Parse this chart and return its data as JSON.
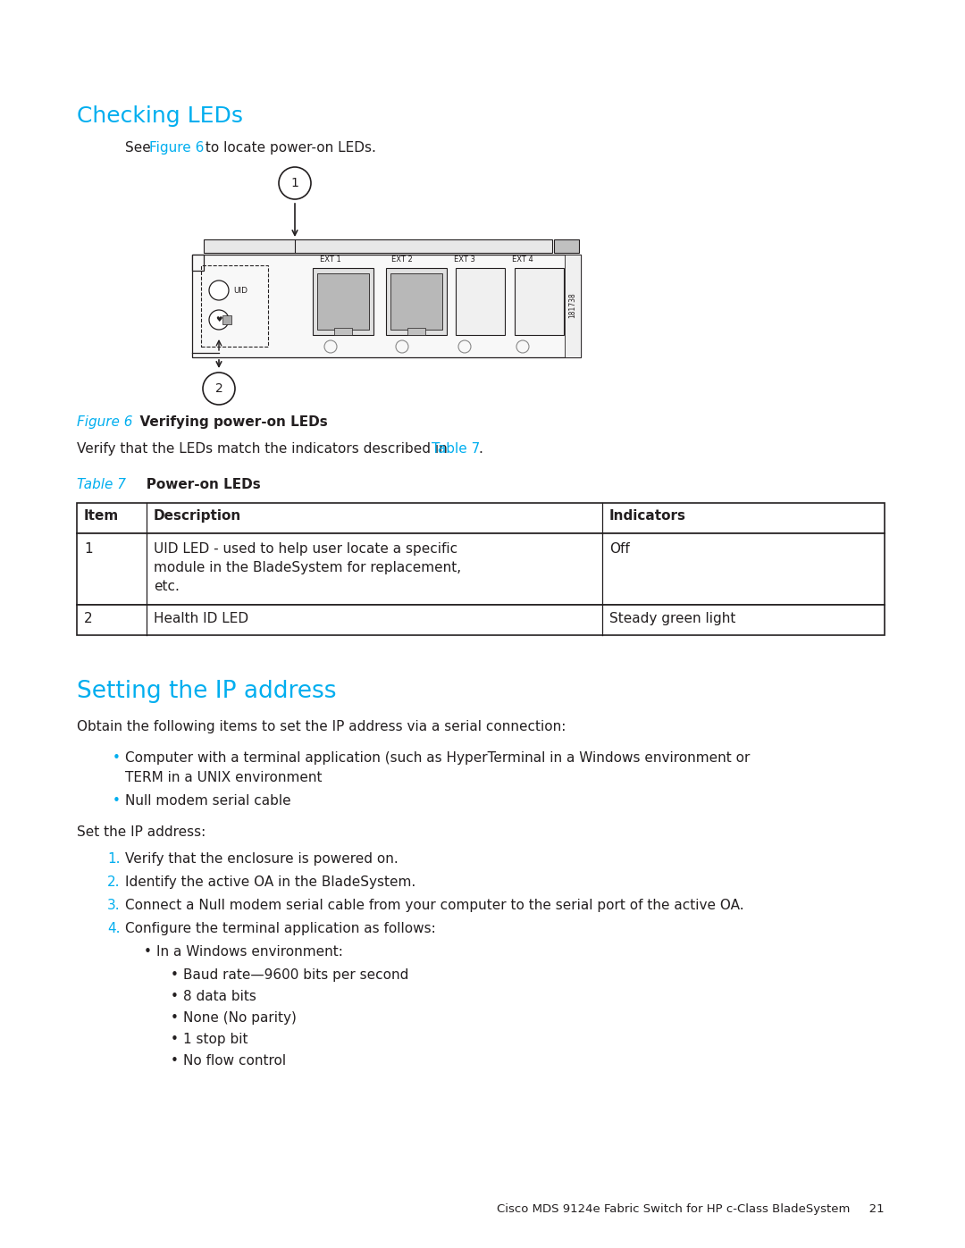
{
  "bg_color": "#ffffff",
  "cyan_color": "#00AEEF",
  "black_color": "#231F20",
  "section1_title": "Checking LEDs",
  "figure_caption_label": "Figure 6",
  "figure_caption_text": "  Verifying power-on LEDs",
  "verify_text_pre": "Verify that the LEDs match the indicators described in ",
  "verify_link": "Table 7",
  "table_caption_label": "Table 7",
  "table_caption_text": "   Power-on LEDs",
  "section2_title": "Setting the IP address",
  "section2_intro": "Obtain the following items to set the IP address via a serial connection:",
  "numbered_steps": [
    "Verify that the enclosure is powered on.",
    "Identify the active OA in the BladeSystem.",
    "Connect a Null modem serial cable from your computer to the serial port of the active OA.",
    "Configure the terminal application as follows:"
  ],
  "sub_bullet_header": "In a Windows environment:",
  "sub_bullets": [
    "Baud rate—9600 bits per second",
    "8 data bits",
    "None (No parity)",
    "1 stop bit",
    "No flow control"
  ],
  "footer_text": "Cisco MDS 9124e Fabric Switch for HP c-Class BladeSystem     21"
}
